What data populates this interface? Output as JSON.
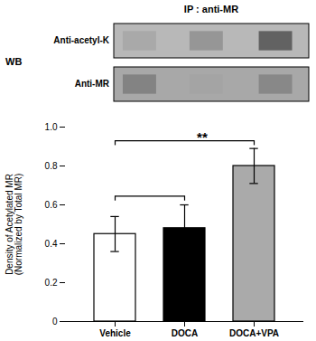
{
  "chart_data": {
    "type": "bar",
    "categories": [
      "Vehicle",
      "DOCA",
      "DOCA+VPA"
    ],
    "values": [
      0.45,
      0.48,
      0.8
    ],
    "errors": [
      0.09,
      0.12,
      0.09
    ],
    "colors": [
      "#ffffff",
      "#000000",
      "#aaaaaa"
    ],
    "ylabel": "Density of Acetylated MR\n(Normalized by Total MR)",
    "ylim": [
      0,
      1.0
    ],
    "yticks": [
      0,
      0.2,
      0.4,
      0.6,
      0.8,
      {
        "value": 1.0,
        "label": "1.0"
      }
    ],
    "brackets": [
      {
        "from": "Vehicle",
        "to": "DOCA+VPA",
        "y": 0.93,
        "text": "**"
      },
      {
        "from": "Vehicle",
        "to": "DOCA",
        "y": 0.645
      }
    ],
    "blot": {
      "ip_label": "IP : anti-MR",
      "wb_label": "WB",
      "rows": [
        "Anti-acetyl-K",
        "Anti-MR"
      ]
    }
  }
}
